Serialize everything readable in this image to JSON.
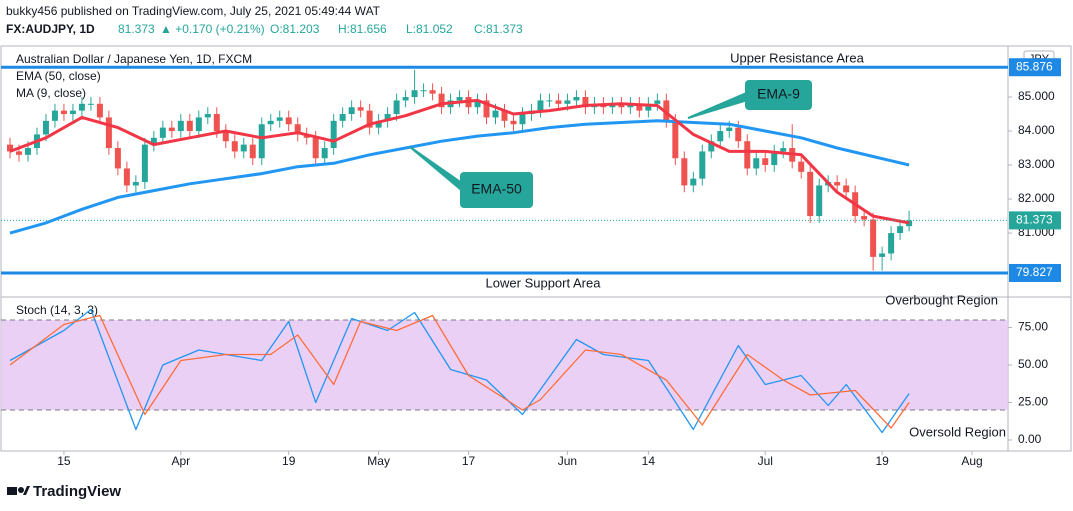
{
  "header": {
    "publisher": "bukky456 published on TradingView.com, July 25, 2021 05:49:44 WAT",
    "symbol": "FX:AUDJPY, 1D",
    "last": "81.373",
    "change": "▲ +0.170 (+0.21%)",
    "ohlc": [
      "O:81.203",
      "H:81.656",
      "L:81.052",
      "C:81.373"
    ]
  },
  "logo": "TradingView",
  "chart_data": [
    {
      "type": "candlestick",
      "title": "Australian Dollar / Japanese Yen, 1D, FXCM",
      "currency": "JPY",
      "up_color": "#26a69a",
      "down_color": "#ef5350",
      "xlim": [
        -1,
        111
      ],
      "ylim": [
        79.15,
        86.5
      ],
      "yticks": [
        {
          "value": 81,
          "label": "81.000"
        },
        {
          "value": 82,
          "label": "82.000"
        },
        {
          "value": 83,
          "label": "83.000"
        },
        {
          "value": 84,
          "label": "84.000"
        },
        {
          "value": 85,
          "label": "85.000"
        }
      ],
      "open": [
        83.6,
        83.4,
        83.3,
        83.5,
        83.9,
        84.3,
        84.6,
        84.5,
        84.6,
        84.8,
        84.8,
        84.4,
        83.5,
        82.9,
        82.4,
        82.5,
        83.6,
        83.8,
        84.1,
        84.0,
        84.3,
        84.0,
        84.4,
        84.5,
        84.0,
        83.7,
        83.4,
        83.6,
        83.2,
        84.2,
        84.3,
        84.4,
        84.2,
        83.9,
        83.8,
        83.2,
        83.5,
        84.3,
        84.5,
        84.7,
        84.6,
        84.1,
        84.3,
        84.5,
        84.9,
        85.0,
        85.2,
        85.2,
        85.1,
        84.7,
        84.9,
        85.0,
        84.7,
        84.9,
        84.4,
        84.6,
        84.3,
        84.2,
        84.5,
        84.6,
        84.9,
        84.9,
        84.8,
        84.9,
        85.0,
        84.7,
        84.8,
        84.7,
        84.8,
        84.7,
        84.8,
        84.6,
        84.8,
        84.9,
        84.3,
        83.2,
        82.4,
        82.6,
        83.4,
        83.7,
        84.0,
        84.1,
        83.7,
        82.9,
        83.2,
        83.0,
        83.4,
        83.5,
        83.1,
        82.8,
        81.5,
        82.4,
        82.5,
        82.4,
        82.2,
        81.5,
        81.4,
        80.3,
        80.4,
        81.0,
        81.203
      ],
      "high": [
        83.8,
        83.6,
        83.7,
        84.1,
        84.5,
        84.8,
        84.8,
        84.8,
        85.0,
        85.0,
        85.0,
        84.6,
        83.7,
        83.1,
        82.7,
        83.8,
        84.0,
        84.3,
        84.3,
        84.5,
        84.5,
        84.6,
        84.7,
        84.7,
        84.2,
        83.9,
        83.8,
        83.8,
        84.4,
        84.5,
        84.6,
        84.6,
        84.4,
        84.1,
        84.0,
        83.7,
        84.5,
        84.7,
        84.9,
        84.9,
        84.8,
        84.5,
        84.7,
        85.1,
        85.2,
        85.8,
        85.4,
        85.4,
        85.3,
        85.1,
        85.2,
        85.2,
        85.1,
        85.1,
        84.8,
        84.8,
        84.5,
        84.7,
        84.8,
        85.1,
        85.1,
        85.1,
        85.1,
        85.2,
        85.2,
        85.0,
        85.0,
        85.0,
        85.0,
        85.0,
        85.0,
        85.0,
        85.1,
        85.1,
        84.5,
        83.4,
        82.8,
        83.6,
        83.9,
        84.2,
        84.3,
        84.3,
        83.9,
        83.4,
        83.4,
        83.6,
        83.7,
        84.2,
        83.3,
        83.0,
        82.6,
        82.7,
        82.7,
        82.6,
        82.4,
        81.7,
        81.6,
        80.6,
        81.2,
        81.4,
        81.656
      ],
      "low": [
        83.2,
        83.1,
        83.1,
        83.3,
        83.7,
        84.1,
        84.3,
        84.3,
        84.4,
        84.6,
        84.2,
        83.3,
        82.7,
        82.2,
        82.2,
        82.3,
        83.4,
        83.6,
        83.8,
        83.8,
        83.8,
        83.8,
        84.2,
        83.8,
        83.5,
        83.2,
        83.2,
        83.0,
        83.0,
        84.0,
        84.1,
        84.0,
        83.7,
        83.6,
        83.0,
        83.0,
        83.3,
        84.1,
        84.3,
        84.4,
        83.9,
        83.9,
        84.1,
        84.3,
        84.7,
        84.8,
        85.0,
        84.9,
        84.5,
        84.5,
        84.7,
        84.5,
        84.5,
        84.2,
        84.2,
        84.1,
        84.0,
        84.0,
        84.3,
        84.4,
        84.7,
        84.6,
        84.6,
        84.7,
        84.5,
        84.5,
        84.5,
        84.5,
        84.5,
        84.5,
        84.4,
        84.4,
        84.6,
        84.1,
        83.0,
        82.2,
        82.2,
        82.4,
        83.2,
        83.5,
        83.8,
        83.5,
        82.7,
        82.7,
        82.8,
        82.8,
        83.2,
        82.9,
        82.6,
        81.3,
        81.3,
        82.2,
        82.2,
        82.0,
        81.3,
        81.2,
        79.9,
        79.9,
        80.2,
        80.8,
        81.052
      ],
      "close": [
        83.4,
        83.3,
        83.5,
        83.9,
        84.3,
        84.6,
        84.5,
        84.6,
        84.8,
        84.8,
        84.4,
        83.5,
        82.9,
        82.4,
        82.5,
        83.6,
        83.8,
        84.1,
        84.0,
        84.3,
        84.0,
        84.4,
        84.5,
        84.0,
        83.7,
        83.4,
        83.6,
        83.2,
        84.2,
        84.3,
        84.4,
        84.2,
        83.9,
        83.8,
        83.2,
        83.5,
        84.3,
        84.5,
        84.7,
        84.6,
        84.1,
        84.3,
        84.5,
        84.9,
        85.0,
        85.2,
        85.2,
        85.1,
        84.7,
        84.9,
        85.0,
        84.7,
        84.9,
        84.4,
        84.6,
        84.3,
        84.2,
        84.5,
        84.6,
        84.9,
        84.9,
        84.8,
        84.9,
        85.0,
        84.7,
        84.8,
        84.7,
        84.8,
        84.7,
        84.8,
        84.6,
        84.8,
        84.9,
        84.3,
        83.2,
        82.4,
        82.6,
        83.4,
        83.7,
        84.0,
        84.1,
        83.7,
        82.9,
        83.2,
        83.0,
        83.4,
        83.5,
        83.1,
        82.8,
        81.5,
        82.4,
        82.5,
        82.4,
        82.2,
        81.5,
        81.4,
        80.3,
        80.4,
        81.0,
        81.203,
        81.373
      ],
      "series": [
        {
          "name": "EMA (50, close)",
          "color": "#2196f3",
          "x": [
            0,
            4,
            8,
            12,
            16,
            20,
            24,
            28,
            32,
            36,
            40,
            44,
            48,
            52,
            56,
            60,
            64,
            68,
            72,
            76,
            80,
            84,
            88,
            92,
            96,
            100
          ],
          "values": [
            81.0,
            81.3,
            81.7,
            82.05,
            82.25,
            82.45,
            82.6,
            82.75,
            82.95,
            83.05,
            83.3,
            83.5,
            83.7,
            83.85,
            83.95,
            84.1,
            84.2,
            84.25,
            84.3,
            84.25,
            84.2,
            84.0,
            83.8,
            83.5,
            83.25,
            83.0
          ]
        },
        {
          "name": "MA (9, close)",
          "color": "#f23645",
          "x": [
            0,
            4,
            8,
            12,
            16,
            20,
            24,
            28,
            32,
            36,
            40,
            44,
            48,
            52,
            56,
            60,
            64,
            68,
            72,
            76,
            80,
            84,
            88,
            92,
            96,
            100
          ],
          "values": [
            83.4,
            83.8,
            84.4,
            84.1,
            83.6,
            83.8,
            84.0,
            83.8,
            83.95,
            83.7,
            84.2,
            84.45,
            84.8,
            84.9,
            84.5,
            84.6,
            84.75,
            84.8,
            84.75,
            83.9,
            83.4,
            83.4,
            83.3,
            82.2,
            81.5,
            81.3
          ]
        }
      ],
      "levels": [
        {
          "label": "Upper Resistance Area",
          "value": 85.876,
          "color": "#1e88e5"
        },
        {
          "label": "Lower Support Area",
          "value": 79.827,
          "color": "#1e88e5"
        }
      ],
      "last_price": 81.373,
      "last_color": "#26a69a",
      "annotations": [
        "EMA-9",
        "EMA-50"
      ],
      "annotation_color": "#26a69a"
    },
    {
      "type": "line",
      "title": "Stoch (14, 3, 3)",
      "xlim": [
        -1,
        111
      ],
      "ylim": [
        -6.7,
        94.7
      ],
      "xticks": [
        {
          "value": 6,
          "label": "15"
        },
        {
          "value": 19,
          "label": "Apr"
        },
        {
          "value": 31,
          "label": "19"
        },
        {
          "value": 41,
          "label": "May"
        },
        {
          "value": 51,
          "label": "17"
        },
        {
          "value": 62,
          "label": "Jun"
        },
        {
          "value": 71,
          "label": "14"
        },
        {
          "value": 84,
          "label": "Jul"
        },
        {
          "value": 97,
          "label": "19"
        },
        {
          "value": 107,
          "label": "Aug"
        }
      ],
      "yticks": [
        {
          "value": 0,
          "label": "0.00"
        },
        {
          "value": 25,
          "label": "25.00"
        },
        {
          "value": 50,
          "label": "50.00"
        },
        {
          "value": 75,
          "label": "75.00"
        }
      ],
      "bands": [
        20,
        80
      ],
      "band_color": "#e8c8f5",
      "series": [
        {
          "color": "#2196f3",
          "x": [
            0,
            6,
            9,
            14,
            17,
            21,
            28,
            31,
            34,
            38,
            42,
            45,
            49,
            53,
            57,
            63,
            66,
            71,
            76,
            81,
            84,
            88,
            91,
            93,
            97,
            100
          ],
          "values": [
            53,
            73,
            87,
            7,
            50,
            60,
            53,
            79,
            25,
            81,
            73,
            85,
            47,
            40,
            17,
            67,
            57,
            53,
            7,
            63,
            37,
            43,
            23,
            37,
            5,
            31
          ]
        },
        {
          "color": "#ff6d3a",
          "x": [
            0,
            6,
            10,
            15,
            19,
            24,
            29,
            32,
            36,
            39,
            43,
            47,
            51,
            57,
            59,
            64,
            68,
            73,
            77,
            82,
            86,
            89,
            94,
            98,
            100
          ],
          "values": [
            50,
            77,
            83,
            17,
            53,
            57,
            57,
            70,
            37,
            79,
            73,
            83,
            43,
            20,
            27,
            60,
            57,
            40,
            10,
            57,
            40,
            30,
            33,
            8,
            25
          ]
        }
      ],
      "annotations": [
        "Overbought Region",
        "Oversold Region"
      ]
    }
  ]
}
